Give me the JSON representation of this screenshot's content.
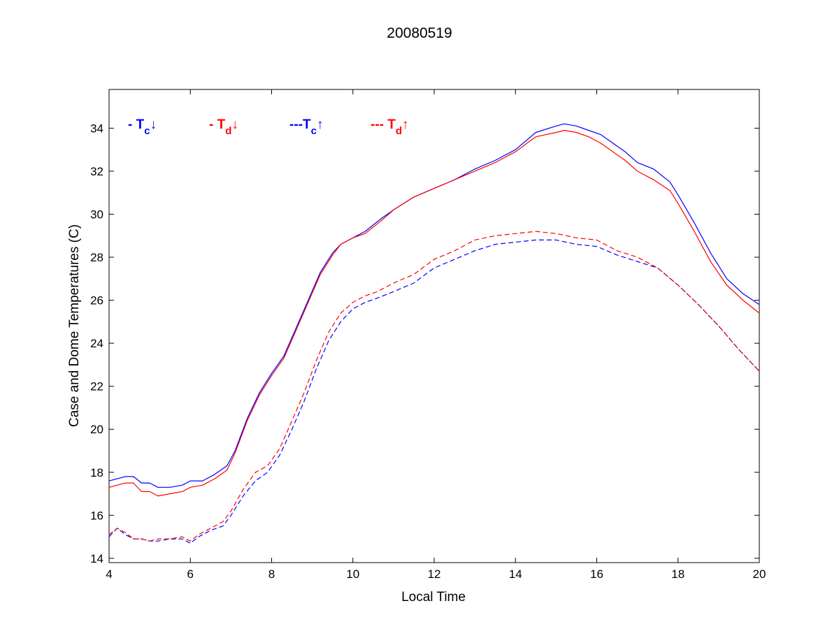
{
  "chart_data": {
    "type": "line",
    "title": "20080519",
    "xlabel": "Local Time",
    "ylabel": "Case and Dome Temperatures (C)",
    "xlim": [
      4,
      20
    ],
    "ylim": [
      13.8,
      35.8
    ],
    "xticks": [
      4,
      6,
      8,
      10,
      12,
      14,
      16,
      18,
      20
    ],
    "yticks": [
      14,
      16,
      18,
      20,
      22,
      24,
      26,
      28,
      30,
      32,
      34
    ],
    "grid": false,
    "legend_position": "top-left, single row inside plot",
    "series": [
      {
        "name": "- T c↓",
        "color": "#0000ff",
        "dash": "solid",
        "legend": {
          "prefix": "- T",
          "sub": "c",
          "arrow": "↓"
        },
        "x": [
          4.0,
          4.4,
          4.6,
          4.8,
          5.0,
          5.2,
          5.5,
          5.8,
          6.0,
          6.3,
          6.6,
          6.9,
          7.1,
          7.4,
          7.7,
          8.0,
          8.3,
          8.6,
          8.9,
          9.2,
          9.5,
          9.7,
          10.0,
          10.3,
          10.7,
          11.0,
          11.5,
          12.0,
          12.5,
          13.0,
          13.5,
          14.0,
          14.5,
          15.0,
          15.2,
          15.5,
          15.8,
          16.1,
          16.4,
          16.7,
          17.0,
          17.4,
          17.8,
          18.0,
          18.4,
          18.8,
          19.2,
          19.6,
          20.0
        ],
        "y": [
          17.6,
          17.8,
          17.8,
          17.5,
          17.5,
          17.3,
          17.3,
          17.4,
          17.6,
          17.6,
          17.9,
          18.3,
          19.0,
          20.5,
          21.7,
          22.6,
          23.4,
          24.7,
          26.0,
          27.3,
          28.2,
          28.6,
          28.9,
          29.2,
          29.8,
          30.2,
          30.8,
          31.2,
          31.6,
          32.1,
          32.5,
          33.0,
          33.8,
          34.1,
          34.2,
          34.1,
          33.9,
          33.7,
          33.3,
          32.9,
          32.4,
          32.1,
          31.5,
          30.9,
          29.6,
          28.2,
          27.0,
          26.3,
          25.8
        ]
      },
      {
        "name": "- T d↓",
        "color": "#ff0000",
        "dash": "solid",
        "legend": {
          "prefix": "- T",
          "sub": "d",
          "arrow": "↓"
        },
        "x": [
          4.0,
          4.4,
          4.6,
          4.8,
          5.0,
          5.2,
          5.5,
          5.8,
          6.0,
          6.3,
          6.6,
          6.9,
          7.1,
          7.4,
          7.7,
          8.0,
          8.3,
          8.6,
          8.9,
          9.2,
          9.5,
          9.7,
          10.0,
          10.3,
          10.7,
          11.0,
          11.5,
          12.0,
          12.5,
          13.0,
          13.5,
          14.0,
          14.5,
          15.0,
          15.2,
          15.5,
          15.8,
          16.1,
          16.4,
          16.7,
          17.0,
          17.4,
          17.8,
          18.0,
          18.4,
          18.8,
          19.2,
          19.6,
          20.0
        ],
        "y": [
          17.3,
          17.5,
          17.5,
          17.1,
          17.1,
          16.9,
          17.0,
          17.1,
          17.3,
          17.4,
          17.7,
          18.1,
          18.9,
          20.4,
          21.6,
          22.5,
          23.3,
          24.6,
          25.9,
          27.2,
          28.1,
          28.6,
          28.9,
          29.1,
          29.7,
          30.2,
          30.8,
          31.2,
          31.6,
          32.0,
          32.4,
          32.9,
          33.6,
          33.8,
          33.9,
          33.8,
          33.6,
          33.3,
          32.9,
          32.5,
          32.0,
          31.6,
          31.1,
          30.5,
          29.2,
          27.8,
          26.7,
          26.0,
          25.4
        ]
      },
      {
        "name": "---T c↑",
        "color": "#0000ff",
        "dash": "dashed",
        "legend": {
          "prefix": "---T",
          "sub": "c",
          "arrow": "↑"
        },
        "x": [
          4.0,
          4.2,
          4.4,
          4.6,
          4.8,
          5.0,
          5.2,
          5.5,
          5.8,
          6.0,
          6.2,
          6.5,
          6.8,
          7.0,
          7.3,
          7.6,
          7.9,
          8.2,
          8.5,
          8.8,
          9.1,
          9.4,
          9.7,
          10.0,
          10.3,
          10.6,
          11.0,
          11.5,
          12.0,
          12.5,
          13.0,
          13.5,
          14.0,
          14.5,
          15.0,
          15.5,
          16.0,
          16.5,
          17.0,
          17.5,
          18.0,
          18.5,
          19.0,
          19.5,
          20.0
        ],
        "y": [
          15.0,
          15.4,
          15.1,
          14.9,
          14.9,
          14.8,
          14.8,
          14.9,
          14.9,
          14.7,
          15.0,
          15.3,
          15.5,
          16.0,
          16.9,
          17.6,
          18.0,
          18.8,
          20.0,
          21.3,
          22.8,
          24.1,
          25.0,
          25.6,
          25.9,
          26.1,
          26.4,
          26.8,
          27.5,
          27.9,
          28.3,
          28.6,
          28.7,
          28.8,
          28.8,
          28.6,
          28.5,
          28.1,
          27.8,
          27.5,
          26.7,
          25.8,
          24.8,
          23.7,
          22.7
        ]
      },
      {
        "name": "--- T d↑",
        "color": "#ff0000",
        "dash": "dashed",
        "legend": {
          "prefix": "--- T",
          "sub": "d",
          "arrow": "↑"
        },
        "x": [
          4.0,
          4.2,
          4.4,
          4.6,
          4.8,
          5.0,
          5.2,
          5.5,
          5.8,
          6.0,
          6.2,
          6.5,
          6.8,
          7.0,
          7.3,
          7.6,
          7.9,
          8.2,
          8.5,
          8.8,
          9.1,
          9.4,
          9.7,
          10.0,
          10.3,
          10.6,
          11.0,
          11.5,
          12.0,
          12.5,
          13.0,
          13.5,
          14.0,
          14.5,
          15.0,
          15.5,
          16.0,
          16.5,
          17.0,
          17.5,
          18.0,
          18.5,
          19.0,
          19.5,
          20.0
        ],
        "y": [
          15.1,
          15.4,
          15.2,
          14.9,
          14.9,
          14.8,
          14.9,
          14.9,
          15.0,
          14.8,
          15.1,
          15.4,
          15.7,
          16.2,
          17.2,
          18.0,
          18.3,
          19.1,
          20.4,
          21.7,
          23.2,
          24.5,
          25.4,
          25.9,
          26.2,
          26.4,
          26.8,
          27.2,
          27.9,
          28.3,
          28.8,
          29.0,
          29.1,
          29.2,
          29.1,
          28.9,
          28.8,
          28.3,
          28.0,
          27.5,
          26.7,
          25.8,
          24.8,
          23.7,
          22.7
        ]
      }
    ]
  }
}
